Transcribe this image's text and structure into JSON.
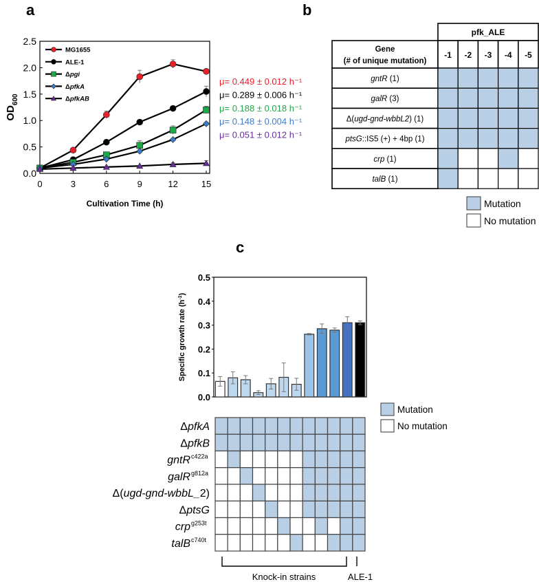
{
  "panel_labels": {
    "a": "a",
    "b": "b",
    "c": "c"
  },
  "colors": {
    "mutation": "#b8cfe6",
    "no_mutation": "#ffffff",
    "red": "#e8202a",
    "black": "#000000",
    "green": "#1fa84a",
    "blue": "#3e7cc9",
    "purple": "#6a2d9c"
  },
  "chart_data": [
    {
      "type": "line",
      "panel": "a",
      "xlabel": "Cultivation Time (h)",
      "ylabel": "OD",
      "ylabel_sub": "600",
      "xlim": [
        0,
        15
      ],
      "ylim": [
        0,
        2.5
      ],
      "xticks": [
        "0",
        "3",
        "6",
        "9",
        "12",
        "15"
      ],
      "yticks": [
        "0.0",
        "0.5",
        "1.0",
        "1.5",
        "2.0",
        "2.5"
      ],
      "x": [
        0,
        3,
        6,
        9,
        12,
        15
      ],
      "legend_position": "top-left",
      "series": [
        {
          "name": "MG1655",
          "delta": "",
          "italic": false,
          "marker": "circle",
          "color": "#e8202a",
          "values": [
            0.1,
            0.44,
            1.11,
            1.83,
            2.07,
            1.93
          ],
          "errors": [
            0.01,
            0.02,
            0.07,
            0.12,
            0.08,
            0.03
          ],
          "rate": "μ= 0.449 ± 0.012 h⁻¹"
        },
        {
          "name": "ALE-1",
          "delta": "",
          "italic": false,
          "marker": "circle",
          "color": "#000000",
          "values": [
            0.1,
            0.26,
            0.59,
            0.97,
            1.23,
            1.55
          ],
          "errors": [
            0.01,
            0.02,
            0.02,
            0.02,
            0.02,
            0.1
          ],
          "rate": "μ= 0.289 ± 0.006 h⁻¹"
        },
        {
          "name": "pgi",
          "delta": "Δ",
          "italic": true,
          "marker": "square",
          "color": "#1fa84a",
          "values": [
            0.1,
            0.21,
            0.35,
            0.53,
            0.82,
            1.2
          ],
          "errors": [
            0.01,
            0.02,
            0.03,
            0.09,
            0.08,
            0.07
          ],
          "rate": "μ= 0.188 ± 0.018 h⁻¹"
        },
        {
          "name": "pfkA",
          "delta": "Δ",
          "italic": true,
          "marker": "diamond",
          "color": "#3e7cc9",
          "values": [
            0.1,
            0.17,
            0.27,
            0.42,
            0.64,
            0.94
          ],
          "errors": [
            0.01,
            0.01,
            0.02,
            0.02,
            0.02,
            0.02
          ],
          "rate": "μ= 0.148 ± 0.004 h⁻¹"
        },
        {
          "name": "pfkAB",
          "delta": "Δ",
          "italic": true,
          "marker": "triangle",
          "color": "#6a2d9c",
          "values": [
            0.08,
            0.1,
            0.12,
            0.14,
            0.17,
            0.19
          ],
          "errors": [
            0.01,
            0.01,
            0.01,
            0.01,
            0.03,
            0.05
          ],
          "rate": "μ= 0.051 ± 0.012 h⁻¹"
        }
      ]
    },
    {
      "type": "table",
      "panel": "b",
      "group_header": "pfk_ALE",
      "gene_header": [
        "Gene",
        "(# of unique mutation)"
      ],
      "columns": [
        "-1",
        "-2",
        "-3",
        "-4",
        "-5"
      ],
      "rows": [
        {
          "parts": [
            {
              "t": "gntR",
              "i": true
            },
            {
              "t": " (1)",
              "i": false
            }
          ],
          "cells": [
            1,
            1,
            1,
            1,
            1
          ]
        },
        {
          "parts": [
            {
              "t": "galR",
              "i": true
            },
            {
              "t": " (3)",
              "i": false
            }
          ],
          "cells": [
            1,
            1,
            1,
            1,
            1
          ]
        },
        {
          "parts": [
            {
              "t": "Δ(",
              "i": false
            },
            {
              "t": "ugd-gnd-wbbL2",
              "i": true
            },
            {
              "t": ") (1)",
              "i": false
            }
          ],
          "cells": [
            1,
            1,
            1,
            1,
            1
          ]
        },
        {
          "parts": [
            {
              "t": "ptsG",
              "i": true
            },
            {
              "t": "::IS5 (+) + 4bp (1)",
              "i": false
            }
          ],
          "cells": [
            1,
            1,
            1,
            1,
            1
          ]
        },
        {
          "parts": [
            {
              "t": "crp",
              "i": true
            },
            {
              "t": " (1)",
              "i": false
            }
          ],
          "cells": [
            1,
            0,
            0,
            1,
            0
          ]
        },
        {
          "parts": [
            {
              "t": "talB",
              "i": true
            },
            {
              "t": " (1)",
              "i": false
            }
          ],
          "cells": [
            1,
            0,
            0,
            0,
            0
          ]
        }
      ],
      "legend": [
        "Mutation",
        "No mutation"
      ]
    },
    {
      "type": "bar",
      "panel": "c",
      "ylabel": "Specific growth rate (h",
      "ylabel_sup": "-1",
      "ylabel_end": ")",
      "ylim": [
        0,
        0.5
      ],
      "yticks": [
        "0.0",
        "0.1",
        "0.2",
        "0.3",
        "0.4",
        "0.5"
      ],
      "values": [
        0.065,
        0.08,
        0.072,
        0.018,
        0.055,
        0.082,
        0.053,
        0.262,
        0.285,
        0.279,
        0.31,
        0.31
      ],
      "errors": [
        0.02,
        0.025,
        0.017,
        0.008,
        0.022,
        0.06,
        0.025,
        0.003,
        0.02,
        0.009,
        0.025,
        0.008
      ],
      "bar_colors": [
        "#ffffff",
        "#bdd7ee",
        "#bdd7ee",
        "#bdd7ee",
        "#bdd7ee",
        "#bdd7ee",
        "#bdd7ee",
        "#9dc3e6",
        "#5b9bd5",
        "#5b9bd5",
        "#4472c4",
        "#000000"
      ]
    },
    {
      "type": "heatmap",
      "panel": "c",
      "rows": [
        {
          "parts": [
            {
              "t": "Δ",
              "i": false
            },
            {
              "t": "pfkA",
              "i": true
            }
          ],
          "sup": "",
          "cells": [
            1,
            1,
            1,
            1,
            1,
            1,
            1,
            1,
            1,
            1,
            1,
            1
          ]
        },
        {
          "parts": [
            {
              "t": "Δ",
              "i": false
            },
            {
              "t": "pfkB",
              "i": true
            }
          ],
          "sup": "",
          "cells": [
            1,
            1,
            1,
            1,
            1,
            1,
            1,
            1,
            1,
            1,
            1,
            1
          ]
        },
        {
          "parts": [
            {
              "t": "gntR",
              "i": true
            }
          ],
          "sup": "c422a",
          "cells": [
            0,
            1,
            0,
            0,
            0,
            0,
            0,
            1,
            1,
            1,
            1,
            1
          ]
        },
        {
          "parts": [
            {
              "t": "galR",
              "i": true
            }
          ],
          "sup": "g812a",
          "cells": [
            0,
            0,
            1,
            0,
            0,
            0,
            0,
            1,
            1,
            1,
            1,
            1
          ]
        },
        {
          "parts": [
            {
              "t": "Δ(",
              "i": false
            },
            {
              "t": "ugd-gnd-wbbL_",
              "i": true
            },
            {
              "t": "2)",
              "i": false
            }
          ],
          "sup": "",
          "cells": [
            0,
            0,
            0,
            1,
            0,
            0,
            0,
            1,
            1,
            1,
            1,
            1
          ]
        },
        {
          "parts": [
            {
              "t": "Δ",
              "i": false
            },
            {
              "t": "ptsG",
              "i": true
            }
          ],
          "sup": "",
          "cells": [
            0,
            0,
            0,
            0,
            1,
            0,
            0,
            1,
            1,
            1,
            1,
            1
          ]
        },
        {
          "parts": [
            {
              "t": "crp",
              "i": true
            }
          ],
          "sup": "g253t",
          "cells": [
            0,
            0,
            0,
            0,
            0,
            1,
            0,
            0,
            1,
            0,
            1,
            1
          ]
        },
        {
          "parts": [
            {
              "t": "talB",
              "i": true
            }
          ],
          "sup": "c740t",
          "cells": [
            0,
            0,
            0,
            0,
            0,
            0,
            1,
            0,
            0,
            1,
            1,
            1
          ]
        }
      ],
      "groups": [
        "Knock-in strains",
        "ALE-1"
      ],
      "legend": [
        "Mutation",
        "No mutation"
      ]
    }
  ]
}
